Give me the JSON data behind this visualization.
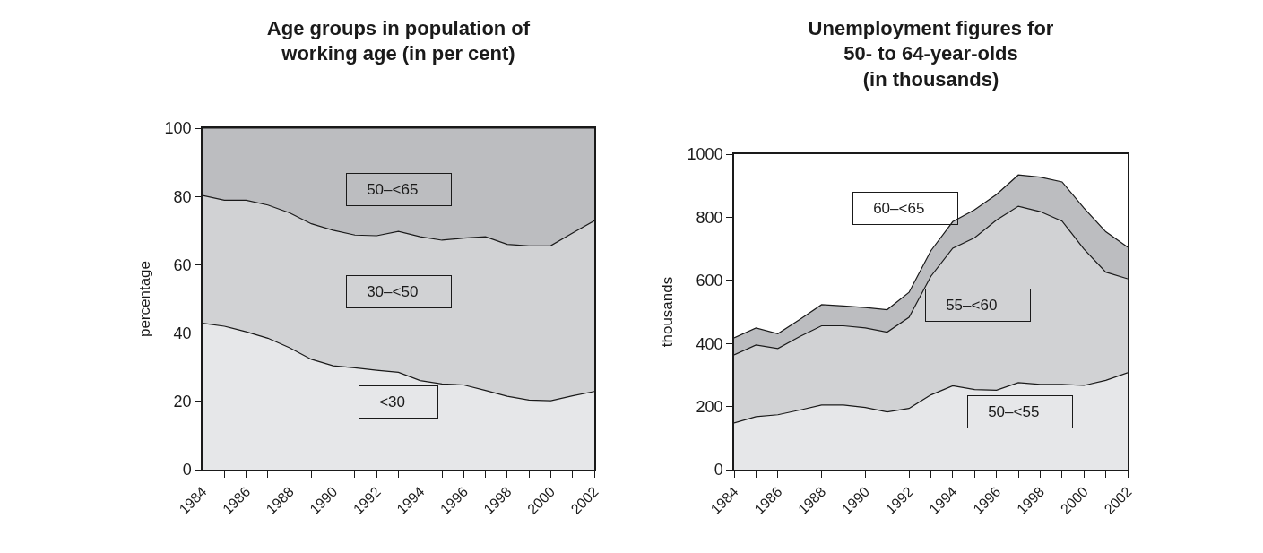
{
  "chart_data": [
    {
      "type": "area",
      "title": "Age groups in population of\nworking age (in per cent)",
      "ylabel": "percentage",
      "x": [
        1984,
        1985,
        1986,
        1987,
        1988,
        1989,
        1990,
        1991,
        1992,
        1993,
        1994,
        1995,
        1996,
        1997,
        1998,
        1999,
        2000,
        2001,
        2002
      ],
      "stacked": true,
      "legend": false,
      "grid": false,
      "xlim": [
        1984,
        2002
      ],
      "xticks": [
        1984,
        {
          "value": 1985,
          "label": null
        },
        1986,
        {
          "value": 1987,
          "label": null
        },
        1988,
        {
          "value": 1989,
          "label": null
        },
        1990,
        {
          "value": 1991,
          "label": null
        },
        1992,
        {
          "value": 1993,
          "label": null
        },
        1994,
        {
          "value": 1995,
          "label": null
        },
        1996,
        {
          "value": 1997,
          "label": null
        },
        1998,
        {
          "value": 1999,
          "label": null
        },
        2000,
        {
          "value": 2001,
          "label": null
        },
        2002
      ],
      "ylim": [
        0,
        100
      ],
      "yticks": [
        0,
        20,
        40,
        60,
        80,
        100
      ],
      "series": [
        {
          "name": "<30",
          "color": "#e6e7e9",
          "values": [
            42.9,
            42,
            40.4,
            38.5,
            35.7,
            32.3,
            30.4,
            29.8,
            29.1,
            28.5,
            26.1,
            25.1,
            24.8,
            23.2,
            21.5,
            20.4,
            20.2,
            21.6,
            22.9
          ]
        },
        {
          "name": "30–<50",
          "color": "#d1d2d4",
          "values": [
            37.4,
            36.9,
            38.5,
            39,
            39.5,
            39.7,
            39.7,
            38.9,
            39.4,
            41.3,
            42.1,
            42.1,
            43,
            45,
            44.5,
            45.1,
            45.4,
            47.7,
            50
          ]
        },
        {
          "name": "50–<65",
          "color": "#bcbdc0",
          "values": [
            19.7,
            21.1,
            21.1,
            22.5,
            24.8,
            28,
            29.9,
            31.3,
            31.5,
            30.2,
            31.8,
            32.8,
            32.2,
            31.8,
            34,
            34.5,
            34.4,
            30.7,
            27.1
          ]
        }
      ]
    },
    {
      "type": "area",
      "title": "Unemployment figures for\n50- to 64-year-olds\n(in thousands)",
      "ylabel": "thousands",
      "x": [
        1984,
        1985,
        1986,
        1987,
        1988,
        1989,
        1990,
        1991,
        1992,
        1993,
        1994,
        1995,
        1996,
        1997,
        1998,
        1999,
        2000,
        2001,
        2002
      ],
      "stacked": true,
      "legend": false,
      "grid": false,
      "xlim": [
        1984,
        2002
      ],
      "xticks": [
        1984,
        {
          "value": 1985,
          "label": null
        },
        1986,
        {
          "value": 1987,
          "label": null
        },
        1988,
        {
          "value": 1989,
          "label": null
        },
        1990,
        {
          "value": 1991,
          "label": null
        },
        1992,
        {
          "value": 1993,
          "label": null
        },
        1994,
        {
          "value": 1995,
          "label": null
        },
        1996,
        {
          "value": 1997,
          "label": null
        },
        1998,
        {
          "value": 1999,
          "label": null
        },
        2000,
        {
          "value": 2001,
          "label": null
        },
        2002
      ],
      "ylim": [
        0,
        1000
      ],
      "yticks": [
        0,
        200,
        400,
        600,
        800,
        1000
      ],
      "series": [
        {
          "name": "50–<55",
          "color": "#e6e7e9",
          "values": [
            148,
            168,
            174,
            189,
            205,
            205,
            197,
            183,
            194,
            237,
            266,
            254,
            252,
            276,
            270,
            270,
            267,
            283,
            307
          ]
        },
        {
          "name": "55–<60",
          "color": "#d1d2d4",
          "values": [
            216,
            227,
            210,
            233,
            251,
            251,
            252,
            253,
            289,
            376,
            436,
            481,
            539,
            559,
            548,
            518,
            432,
            343,
            298
          ]
        },
        {
          "name": "60–<65",
          "color": "#bcbdc0",
          "values": [
            54,
            54,
            47,
            54,
            67,
            63,
            65,
            71,
            79,
            81,
            84,
            89,
            81,
            99,
            109,
            124,
            130,
            128,
            100
          ]
        }
      ]
    }
  ]
}
